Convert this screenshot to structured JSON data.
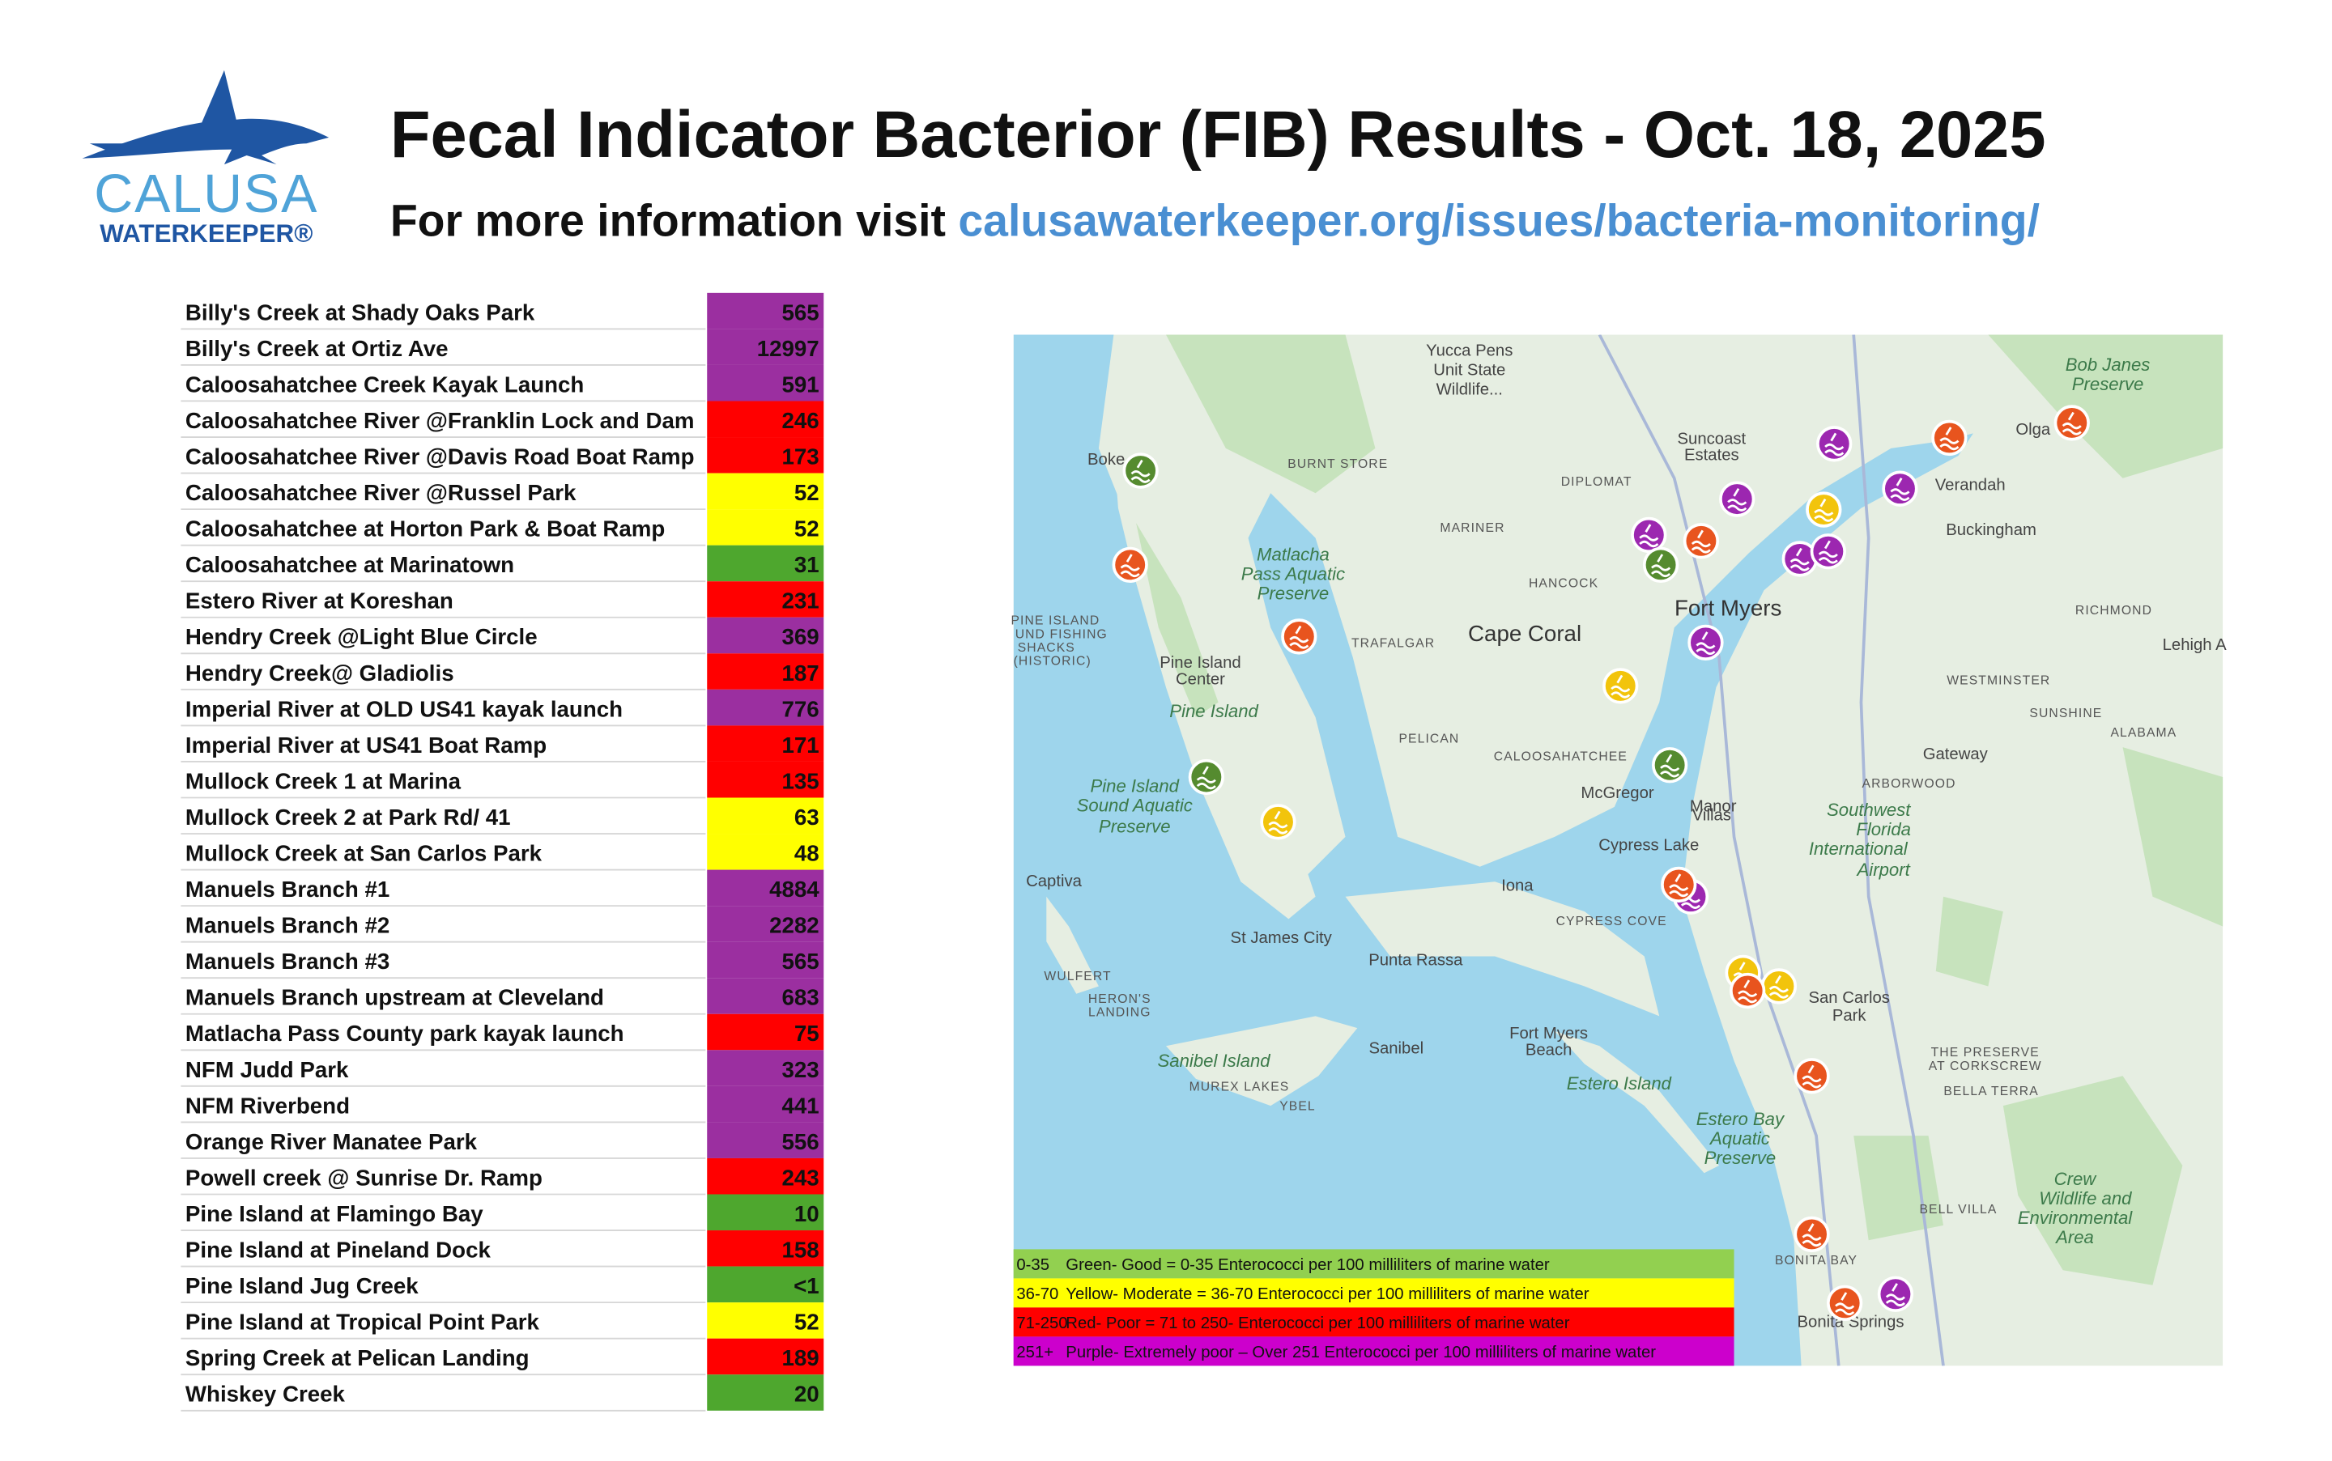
{
  "header": {
    "logo_name": "CALUSA",
    "logo_sub": "WATERKEEPER®",
    "title": "Fecal Indicator Bacterior (FIB) Results - Oct. 18, 2025",
    "subtitle": "For more information visit",
    "link": "calusawaterkeeper.org/issues/bacteria-monitoring/"
  },
  "table": {
    "rows": [
      {
        "site": "Billy's Creek at Shady Oaks Park",
        "value": 565,
        "color": "#9b2fa0"
      },
      {
        "site": "Billy's Creek at Ortiz Ave",
        "value": 12997,
        "color": "#9b2fa0"
      },
      {
        "site": "Caloosahatchee Creek Kayak Launch",
        "value": 591,
        "color": "#9b2fa0"
      },
      {
        "site": "Caloosahatchee River @Franklin Lock and Dam",
        "value": 246,
        "color": "#ff0000"
      },
      {
        "site": "Caloosahatchee River @Davis Road Boat Ramp",
        "value": 173,
        "color": "#ff0000"
      },
      {
        "site": "Caloosahatchee River @Russel Park",
        "value": 52,
        "color": "#ffff00"
      },
      {
        "site": "Caloosahatchee at Horton Park & Boat Ramp",
        "value": 52,
        "color": "#ffff00"
      },
      {
        "site": "Caloosahatchee at Marinatown",
        "value": 31,
        "color": "#4ea72e"
      },
      {
        "site": "Estero River at Koreshan",
        "value": 231,
        "color": "#ff0000"
      },
      {
        "site": "Hendry Creek @Light Blue Circle",
        "value": 369,
        "color": "#9b2fa0"
      },
      {
        "site": "Hendry Creek@ Gladiolis",
        "value": 187,
        "color": "#ff0000"
      },
      {
        "site": "Imperial River at OLD US41 kayak launch",
        "value": 776,
        "color": "#9b2fa0"
      },
      {
        "site": "Imperial River at US41 Boat Ramp",
        "value": 171,
        "color": "#ff0000"
      },
      {
        "site": "Mullock Creek 1 at Marina",
        "value": 135,
        "color": "#ff0000"
      },
      {
        "site": "Mullock Creek 2 at Park Rd/ 41",
        "value": 63,
        "color": "#ffff00"
      },
      {
        "site": "Mullock Creek at San Carlos Park",
        "value": 48,
        "color": "#ffff00"
      },
      {
        "site": "Manuels Branch #1",
        "value": 4884,
        "color": "#9b2fa0"
      },
      {
        "site": "Manuels Branch #2",
        "value": 2282,
        "color": "#9b2fa0"
      },
      {
        "site": "Manuels Branch #3",
        "value": 565,
        "color": "#9b2fa0"
      },
      {
        "site": "Manuels Branch upstream at Cleveland",
        "value": 683,
        "color": "#9b2fa0"
      },
      {
        "site": "Matlacha Pass County park kayak launch",
        "value": 75,
        "color": "#ff0000"
      },
      {
        "site": "NFM Judd Park",
        "value": 323,
        "color": "#9b2fa0"
      },
      {
        "site": "NFM Riverbend",
        "value": 441,
        "color": "#9b2fa0"
      },
      {
        "site": "Orange River Manatee Park",
        "value": 556,
        "color": "#9b2fa0"
      },
      {
        "site": "Powell creek @ Sunrise Dr. Ramp",
        "value": 243,
        "color": "#ff0000"
      },
      {
        "site": "Pine Island at Flamingo Bay",
        "value": 10,
        "color": "#4ea72e"
      },
      {
        "site": "Pine Island at Pineland Dock",
        "value": 158,
        "color": "#ff0000"
      },
      {
        "site": "Pine Island Jug Creek",
        "value": "<1",
        "color": "#4ea72e"
      },
      {
        "site": "Pine Island at Tropical Point Park",
        "value": 52,
        "color": "#ffff00"
      },
      {
        "site": "Spring Creek at Pelican Landing",
        "value": 189,
        "color": "#ff0000"
      },
      {
        "site": "Whiskey Creek",
        "value": 20,
        "color": "#4ea72e"
      }
    ]
  },
  "legend": [
    {
      "range": "0-35",
      "text": "Green- Good = 0-35 Enterococci per 100 milliliters of marine water",
      "color": "#92d050"
    },
    {
      "range": "36-70",
      "text": "Yellow- Moderate = 36-70 Enterococci per 100 milliliters of marine water",
      "color": "#ffff00"
    },
    {
      "range": "71-250",
      "text": "Red- Poor = 71 to 250-  Enterococci per 100 milliliters of marine water",
      "color": "#ff0000"
    },
    {
      "range": "251+",
      "text": "Purple- Extremely poor – Over 251 Enterococci per 100 milliliters of marine water",
      "color": "#cc00cc"
    }
  ],
  "map": {
    "labels": [
      "Yucca Pens",
      "Unit State",
      "Wildlife...",
      "Bob Janes",
      "Preserve",
      "Suncoast",
      "Estates",
      "Olga",
      "Boke",
      "BURNT STORE",
      "DIPLOMAT",
      "Verandah",
      "MARINER",
      "Buckingham",
      "Matlacha",
      "Pass Aquatic",
      "Preserve",
      "HANCOCK",
      "Fort Myers",
      "Cape Coral",
      "TRAFALGAR",
      "RICHMOND",
      "Lehigh A",
      "PINE ISLAND",
      "UND FISHING",
      "SHACKS",
      "(HISTORIC)",
      "Pine Island",
      "Center",
      "WESTMINSTER",
      "Pine Island",
      "SUNSHINE",
      "ALABAMA",
      "PELICAN",
      "Gateway",
      "CALOOSAHATCHEE",
      "ARBORWOOD",
      "Manor",
      "McGregor",
      "Villas",
      "Pine Island",
      "Sound Aquatic",
      "Preserve",
      "Southwest",
      "Florida",
      "International",
      "Airport",
      "Cypress Lake",
      "Captiva",
      "Iona",
      "CYPRESS COVE",
      "St James City",
      "Punta Rassa",
      "WULFERT",
      "HERON'S",
      "LANDING",
      "San Carlos",
      "Park",
      "Fort Myers",
      "Beach",
      "Sanibel",
      "THE PRESERVE",
      "AT CORKSCREW",
      "Sanibel Island",
      "MUREX LAKES",
      "Estero Island",
      "BELLA TERRA",
      "YBEL",
      "Estero Bay",
      "Aquatic",
      "Preserve",
      "Crew",
      "Wildlife and",
      "Environmental",
      "Area",
      "BELL VILLA",
      "BONITA BAY",
      "Bonita Springs"
    ]
  }
}
